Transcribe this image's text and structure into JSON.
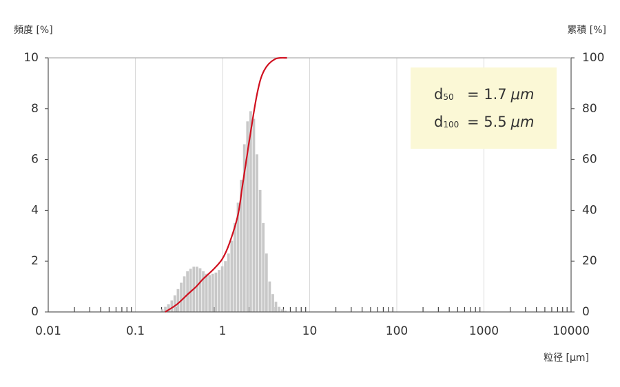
{
  "chart_data": {
    "type": "histogram",
    "y_label": "頻度 [%]",
    "y2_label": "累積 [%]",
    "x_label": "粒径 [μm]",
    "log_x": true,
    "xlim": [
      0.01,
      10000
    ],
    "xticks": [
      0.01,
      0.1,
      1,
      10,
      100,
      1000,
      10000
    ],
    "ylim": [
      0,
      10
    ],
    "yticks": [
      0,
      2,
      4,
      6,
      8,
      10
    ],
    "y2lim": [
      0,
      100
    ],
    "y2ticks": [
      0,
      20,
      40,
      60,
      80,
      100
    ],
    "grid": true,
    "color": "#c8c8c8",
    "bins": [
      0.195,
      0.212,
      0.23,
      0.251,
      0.272,
      0.296,
      0.322,
      0.35,
      0.38,
      0.413,
      0.449,
      0.488,
      0.531,
      0.577,
      0.627,
      0.682,
      0.741,
      0.805,
      0.876,
      0.953,
      1.035,
      1.125,
      1.223,
      1.33,
      1.445,
      1.57,
      1.708,
      1.858,
      2.018,
      2.193,
      2.385,
      2.594,
      2.818,
      3.062,
      3.331,
      3.622,
      3.936,
      4.276,
      4.651,
      5.058,
      5.495
    ],
    "values": [
      0.1,
      0.2,
      0.3,
      0.45,
      0.65,
      0.9,
      1.15,
      1.4,
      1.6,
      1.7,
      1.78,
      1.78,
      1.72,
      1.6,
      1.5,
      1.45,
      1.5,
      1.55,
      1.65,
      1.8,
      2.0,
      2.3,
      2.8,
      3.5,
      4.3,
      5.2,
      6.6,
      7.5,
      7.9,
      7.6,
      6.2,
      4.8,
      3.5,
      2.3,
      1.2,
      0.7,
      0.4,
      0.2,
      0.1,
      0.05
    ],
    "cumulative": {
      "axis": "y2",
      "color": "#d0101f",
      "x": [
        0.22,
        0.3,
        0.4,
        0.5,
        0.6,
        0.8,
        1,
        1.2,
        1.5,
        1.7,
        2,
        2.5,
        3,
        4,
        5.5
      ],
      "values": [
        0,
        3,
        7,
        10,
        13,
        17,
        21,
        27,
        38,
        50,
        66,
        86,
        95,
        99.5,
        100
      ]
    },
    "annotations": [
      {
        "symbol": "d",
        "subscript": "50",
        "text": "= 1.7",
        "unit": "μm"
      },
      {
        "symbol": "d",
        "subscript": "100",
        "text": "= 5.5",
        "unit": "μm"
      }
    ]
  }
}
